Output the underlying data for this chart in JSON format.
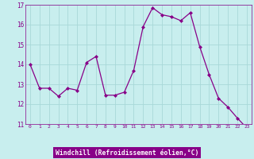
{
  "x": [
    0,
    1,
    2,
    3,
    4,
    5,
    6,
    7,
    8,
    9,
    10,
    11,
    12,
    13,
    14,
    15,
    16,
    17,
    18,
    19,
    20,
    21,
    22,
    23
  ],
  "y": [
    14.0,
    12.8,
    12.8,
    12.4,
    12.8,
    12.7,
    14.1,
    14.4,
    12.45,
    12.45,
    12.6,
    13.7,
    15.9,
    16.85,
    16.5,
    16.4,
    16.2,
    16.6,
    14.9,
    13.5,
    12.3,
    11.85,
    11.3,
    10.8
  ],
  "line_color": "#880088",
  "marker": "D",
  "marker_size": 2.0,
  "bg_color": "#c8eeee",
  "grid_color": "#a8d8d8",
  "xlabel": "Windchill (Refroidissement éolien,°C)",
  "ylim": [
    11,
    17
  ],
  "xlim_min": -0.5,
  "xlim_max": 23.5,
  "yticks": [
    11,
    12,
    13,
    14,
    15,
    16,
    17
  ],
  "xticks": [
    0,
    1,
    2,
    3,
    4,
    5,
    6,
    7,
    8,
    9,
    10,
    11,
    12,
    13,
    14,
    15,
    16,
    17,
    18,
    19,
    20,
    21,
    22,
    23
  ],
  "xtick_labels": [
    "0",
    "1",
    "2",
    "3",
    "4",
    "5",
    "6",
    "7",
    "8",
    "9",
    "10",
    "11",
    "12",
    "13",
    "14",
    "15",
    "16",
    "17",
    "18",
    "19",
    "20",
    "21",
    "22",
    "23"
  ],
  "tick_color": "#880088",
  "spine_color": "#880088",
  "xlabel_bg": "#880088",
  "xlabel_fg": "#ffffff"
}
